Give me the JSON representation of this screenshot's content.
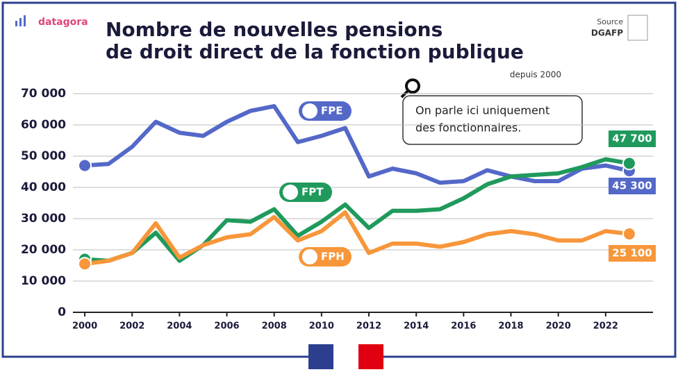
{
  "chart_data": {
    "type": "line",
    "brand": "datagora",
    "title": [
      "Nombre de nouvelles pensions",
      "de droit direct de la fonction publique"
    ],
    "subtitle": "depuis 2000",
    "source": [
      "Source",
      "DGAFP"
    ],
    "annotation": [
      "On parle ici uniquement",
      "des fonctionnaires."
    ],
    "x": [
      2000,
      2001,
      2002,
      2003,
      2004,
      2005,
      2006,
      2007,
      2008,
      2009,
      2010,
      2011,
      2012,
      2013,
      2014,
      2015,
      2016,
      2017,
      2018,
      2019,
      2020,
      2021,
      2022,
      2023
    ],
    "xlim": [
      1999.5,
      2024
    ],
    "xticks": [
      2000,
      2002,
      2004,
      2006,
      2008,
      2010,
      2012,
      2014,
      2016,
      2018,
      2020,
      2022
    ],
    "ylim": [
      0,
      70000
    ],
    "yticks": [
      0,
      {
        "value": 10000,
        "label": "10 000"
      },
      {
        "value": 20000,
        "label": "20 000"
      },
      {
        "value": 30000,
        "label": "30 000"
      },
      {
        "value": 40000,
        "label": "40 000"
      },
      {
        "value": 50000,
        "label": "50 000"
      },
      {
        "value": 60000,
        "label": "60 000"
      },
      {
        "value": 70000,
        "label": "70 000"
      }
    ],
    "grid": true,
    "series": [
      {
        "name": "FPE",
        "color": "#5468c8",
        "values": [
          47000,
          47500,
          53000,
          61000,
          57500,
          56500,
          61000,
          64500,
          66000,
          54500,
          56500,
          59000,
          43500,
          46000,
          44500,
          41500,
          42000,
          45500,
          43500,
          42000,
          42000,
          46000,
          47000,
          45300
        ],
        "value_labels": [
          null,
          null,
          null,
          null,
          null,
          null,
          null,
          null,
          null,
          null,
          null,
          null,
          null,
          null,
          null,
          null,
          null,
          null,
          null,
          null,
          null,
          null,
          null,
          "45 300"
        ]
      },
      {
        "name": "FPT",
        "color": "#1f9a5c",
        "values": [
          17000,
          16500,
          19000,
          25500,
          16500,
          21500,
          29500,
          29000,
          33000,
          24500,
          29000,
          34500,
          27000,
          32500,
          32500,
          33000,
          36500,
          41000,
          43500,
          44000,
          44500,
          46500,
          49000,
          47700
        ],
        "value_labels": [
          null,
          null,
          null,
          null,
          null,
          null,
          null,
          null,
          null,
          null,
          null,
          null,
          null,
          null,
          null,
          null,
          null,
          null,
          null,
          null,
          null,
          null,
          null,
          "47 700"
        ]
      },
      {
        "name": "FPH",
        "color": "#f7963a",
        "values": [
          15500,
          16500,
          19000,
          28500,
          17500,
          21500,
          24000,
          25000,
          30500,
          23000,
          26000,
          32000,
          19000,
          22000,
          22000,
          21000,
          22500,
          25000,
          26000,
          25000,
          23000,
          23000,
          26000,
          25100
        ],
        "value_labels": [
          null,
          null,
          null,
          null,
          null,
          null,
          null,
          null,
          null,
          null,
          null,
          null,
          null,
          null,
          null,
          null,
          null,
          null,
          null,
          null,
          null,
          null,
          null,
          "25 100"
        ]
      }
    ]
  }
}
